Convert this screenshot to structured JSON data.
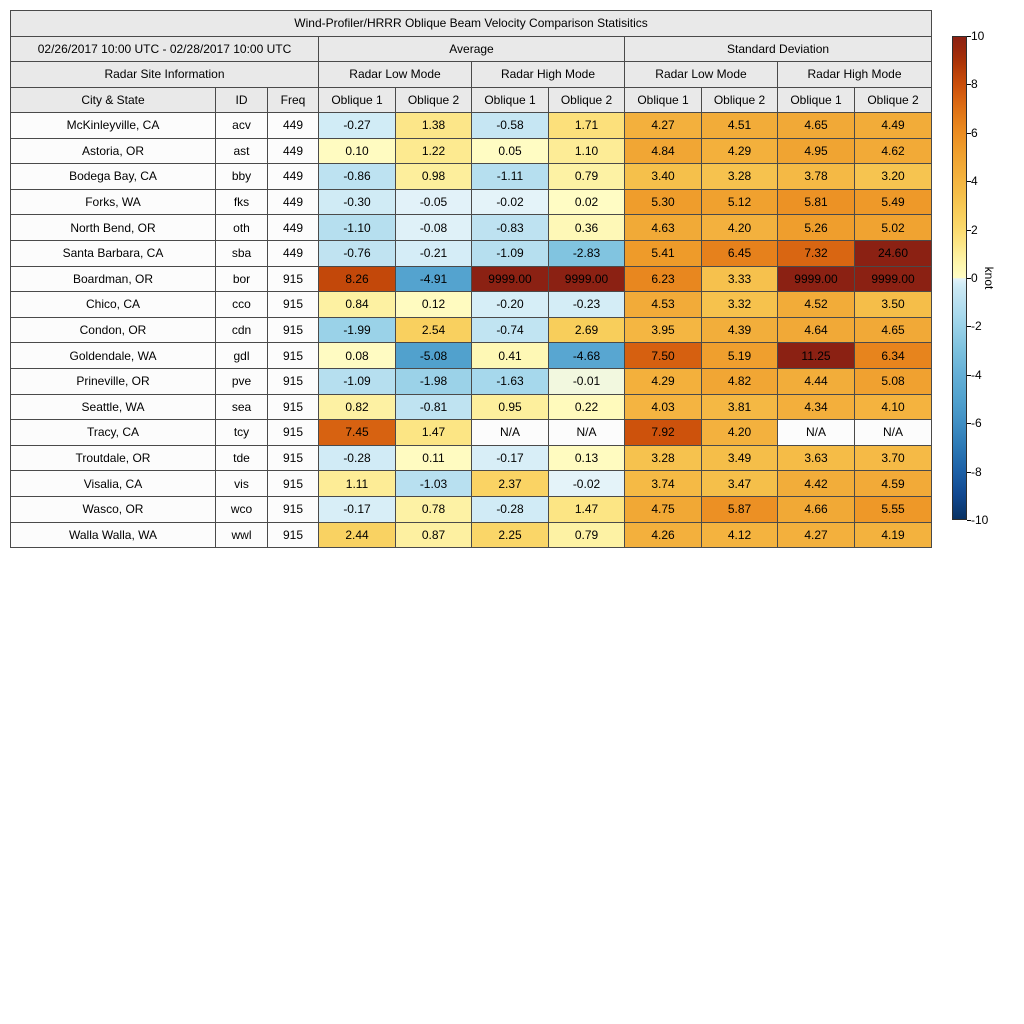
{
  "title": "Wind-Profiler/HRRR Oblique Beam Velocity Comparison Statisitics",
  "header": {
    "period": "02/26/2017 10:00 UTC - 02/28/2017 10:00 UTC",
    "site_info": "Radar Site Information",
    "group_labels": [
      "Average",
      "Standard Deviation"
    ],
    "mode_labels": [
      "Radar Low Mode",
      "Radar High Mode",
      "Radar Low Mode",
      "Radar High Mode"
    ],
    "col_labels": [
      "City & State",
      "ID",
      "Freq",
      "Oblique 1",
      "Oblique 2",
      "Oblique 1",
      "Oblique 2",
      "Oblique 1",
      "Oblique 2",
      "Oblique 1",
      "Oblique 2"
    ]
  },
  "chart_data": {
    "type": "heatmap",
    "title": "Wind-Profiler/HRRR Oblique Beam Velocity Comparison Statisitics",
    "unit": "knot",
    "value_range": [
      -10,
      10
    ],
    "na_label": "N/A",
    "columns": [
      "Average Radar Low Mode Oblique 1",
      "Average Radar Low Mode Oblique 2",
      "Average Radar High Mode Oblique 1",
      "Average Radar High Mode Oblique 2",
      "Std Dev Radar Low Mode Oblique 1",
      "Std Dev Radar Low Mode Oblique 2",
      "Std Dev Radar High Mode Oblique 1",
      "Std Dev Radar High Mode Oblique 2"
    ],
    "rows": [
      {
        "city": "McKinleyville, CA",
        "id": "acv",
        "freq": "449",
        "values": [
          "-0.27",
          "1.38",
          "-0.58",
          "1.71",
          "4.27",
          "4.51",
          "4.65",
          "4.49"
        ]
      },
      {
        "city": "Astoria, OR",
        "id": "ast",
        "freq": "449",
        "values": [
          "0.10",
          "1.22",
          "0.05",
          "1.10",
          "4.84",
          "4.29",
          "4.95",
          "4.62"
        ]
      },
      {
        "city": "Bodega Bay, CA",
        "id": "bby",
        "freq": "449",
        "values": [
          "-0.86",
          "0.98",
          "-1.11",
          "0.79",
          "3.40",
          "3.28",
          "3.78",
          "3.20"
        ]
      },
      {
        "city": "Forks, WA",
        "id": "fks",
        "freq": "449",
        "values": [
          "-0.30",
          "-0.05",
          "-0.02",
          "0.02",
          "5.30",
          "5.12",
          "5.81",
          "5.49"
        ]
      },
      {
        "city": "North Bend, OR",
        "id": "oth",
        "freq": "449",
        "values": [
          "-1.10",
          "-0.08",
          "-0.83",
          "0.36",
          "4.63",
          "4.20",
          "5.26",
          "5.02"
        ]
      },
      {
        "city": "Santa Barbara, CA",
        "id": "sba",
        "freq": "449",
        "values": [
          "-0.76",
          "-0.21",
          "-1.09",
          "-2.83",
          "5.41",
          "6.45",
          "7.32",
          "24.60"
        ]
      },
      {
        "city": "Boardman, OR",
        "id": "bor",
        "freq": "915",
        "values": [
          "8.26",
          "-4.91",
          "9999.00",
          "9999.00",
          "6.23",
          "3.33",
          "9999.00",
          "9999.00"
        ]
      },
      {
        "city": "Chico, CA",
        "id": "cco",
        "freq": "915",
        "values": [
          "0.84",
          "0.12",
          "-0.20",
          "-0.23",
          "4.53",
          "3.32",
          "4.52",
          "3.50"
        ]
      },
      {
        "city": "Condon, OR",
        "id": "cdn",
        "freq": "915",
        "values": [
          "-1.99",
          "2.54",
          "-0.74",
          "2.69",
          "3.95",
          "4.39",
          "4.64",
          "4.65"
        ]
      },
      {
        "city": "Goldendale, WA",
        "id": "gdl",
        "freq": "915",
        "values": [
          "0.08",
          "-5.08",
          "0.41",
          "-4.68",
          "7.50",
          "5.19",
          "11.25",
          "6.34"
        ]
      },
      {
        "city": "Prineville, OR",
        "id": "pve",
        "freq": "915",
        "values": [
          "-1.09",
          "-1.98",
          "-1.63",
          "-0.01",
          "4.29",
          "4.82",
          "4.44",
          "5.08"
        ]
      },
      {
        "city": "Seattle, WA",
        "id": "sea",
        "freq": "915",
        "values": [
          "0.82",
          "-0.81",
          "0.95",
          "0.22",
          "4.03",
          "3.81",
          "4.34",
          "4.10"
        ]
      },
      {
        "city": "Tracy, CA",
        "id": "tcy",
        "freq": "915",
        "values": [
          "7.45",
          "1.47",
          "N/A",
          "N/A",
          "7.92",
          "4.20",
          "N/A",
          "N/A"
        ]
      },
      {
        "city": "Troutdale, OR",
        "id": "tde",
        "freq": "915",
        "values": [
          "-0.28",
          "0.11",
          "-0.17",
          "0.13",
          "3.28",
          "3.49",
          "3.63",
          "3.70"
        ]
      },
      {
        "city": "Visalia, CA",
        "id": "vis",
        "freq": "915",
        "values": [
          "1.11",
          "-1.03",
          "2.37",
          "-0.02",
          "3.74",
          "3.47",
          "4.42",
          "4.59"
        ]
      },
      {
        "city": "Wasco, OR",
        "id": "wco",
        "freq": "915",
        "values": [
          "-0.17",
          "0.78",
          "-0.28",
          "1.47",
          "4.75",
          "5.87",
          "4.66",
          "5.55"
        ]
      },
      {
        "city": "Walla Walla, WA",
        "id": "wwl",
        "freq": "915",
        "values": [
          "2.44",
          "0.87",
          "2.25",
          "0.79",
          "4.26",
          "4.12",
          "4.27",
          "4.19"
        ]
      }
    ]
  },
  "colorbar": {
    "label": "knot",
    "min": -10,
    "max": 10,
    "ticks": [
      "10",
      "8",
      "6",
      "4",
      "2",
      "0",
      "-2",
      "-4",
      "-6",
      "-8",
      "-10"
    ],
    "na_color": "#FCFCFC",
    "stops": [
      {
        "v": -10,
        "c": "#093263"
      },
      {
        "v": -9,
        "c": "#114890"
      },
      {
        "v": -8,
        "c": "#1D61A7"
      },
      {
        "v": -7,
        "c": "#2C79B5"
      },
      {
        "v": -6,
        "c": "#408FC4"
      },
      {
        "v": -5.5,
        "c": "#4999C9"
      },
      {
        "v": -5,
        "c": "#52A2CE"
      },
      {
        "v": -4.5,
        "c": "#5BA9D2"
      },
      {
        "v": -4,
        "c": "#65AFD6"
      },
      {
        "v": -3.5,
        "c": "#70B8DA"
      },
      {
        "v": -3,
        "c": "#7CC1DE"
      },
      {
        "v": -2.5,
        "c": "#8BC9E3"
      },
      {
        "v": -2,
        "c": "#9AD2E8"
      },
      {
        "v": -1.5,
        "c": "#AADAED"
      },
      {
        "v": -1,
        "c": "#B9E0F0"
      },
      {
        "v": -0.5,
        "c": "#C8E7F3"
      },
      {
        "v": -0.25,
        "c": "#D2ECF6"
      },
      {
        "v": -0.02,
        "c": "#E4F3F9"
      },
      {
        "v": 0,
        "c": "#FFFCC5"
      },
      {
        "v": 0.5,
        "c": "#FEF7B1"
      },
      {
        "v": 1,
        "c": "#FDEE9B"
      },
      {
        "v": 1.5,
        "c": "#FCE483"
      },
      {
        "v": 2,
        "c": "#FBDA6F"
      },
      {
        "v": 2.5,
        "c": "#F9D160"
      },
      {
        "v": 3,
        "c": "#F7C854"
      },
      {
        "v": 3.5,
        "c": "#F5BE49"
      },
      {
        "v": 4,
        "c": "#F4B541"
      },
      {
        "v": 4.5,
        "c": "#F2AC39"
      },
      {
        "v": 5,
        "c": "#F0A331"
      },
      {
        "v": 5.5,
        "c": "#EE9929"
      },
      {
        "v": 6,
        "c": "#EB8D22"
      },
      {
        "v": 6.5,
        "c": "#E5801B"
      },
      {
        "v": 7,
        "c": "#DE7115"
      },
      {
        "v": 7.5,
        "c": "#D66010"
      },
      {
        "v": 8,
        "c": "#CB4F0B"
      },
      {
        "v": 8.5,
        "c": "#BB4109"
      },
      {
        "v": 9,
        "c": "#A93208"
      },
      {
        "v": 9.5,
        "c": "#99280D"
      },
      {
        "v": 10,
        "c": "#8B2113"
      }
    ]
  }
}
